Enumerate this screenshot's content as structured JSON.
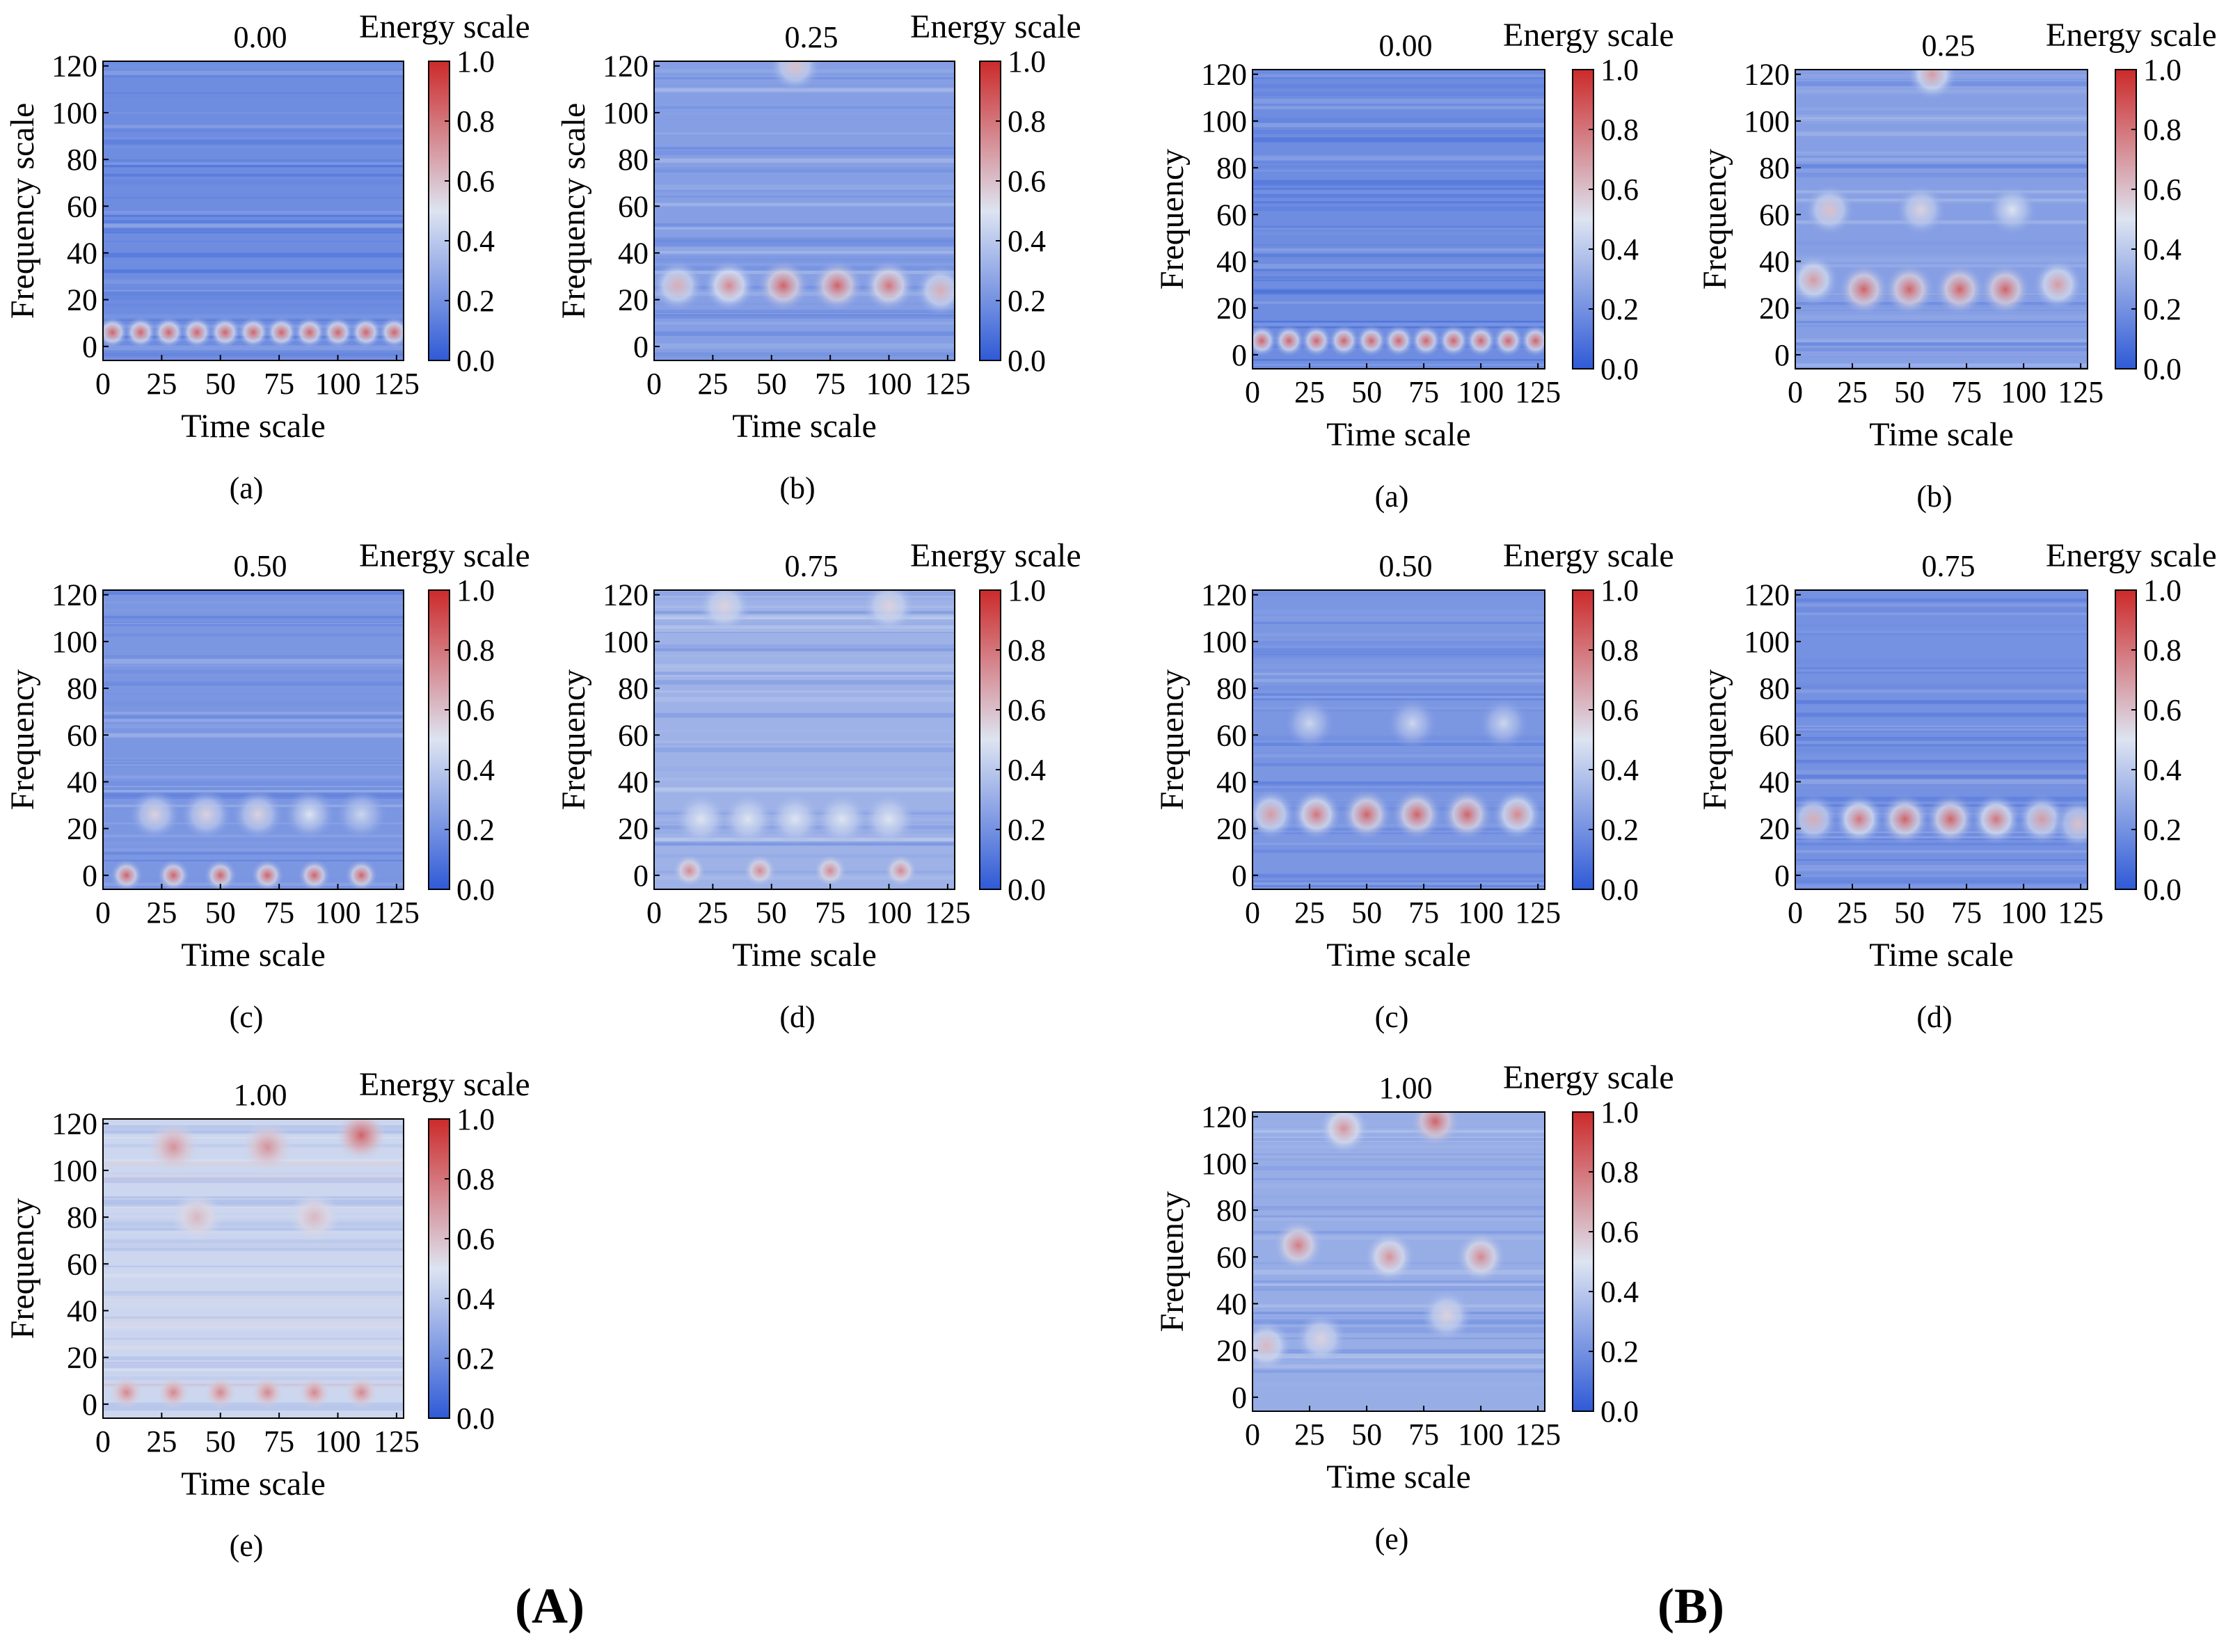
{
  "figure": {
    "group_labels": [
      "(A)",
      "(B)"
    ],
    "colormap": {
      "low": "#2f5ad6",
      "mid": "#dde4f1",
      "high": "#cc2a2a"
    }
  },
  "chart_data": [
    {
      "group": "A",
      "panel": "(a)",
      "type": "heatmap",
      "title": "0.00",
      "xlabel": "Time scale",
      "ylabel": "Frequency scale",
      "colorbar_title": "Energy scale",
      "x_ticks": [
        0,
        25,
        50,
        75,
        100,
        125
      ],
      "y_ticks": [
        0,
        20,
        40,
        60,
        80,
        100,
        120
      ],
      "colorbar_ticks": [
        "0.0",
        "0.2",
        "0.4",
        "0.6",
        "0.8",
        "1.0"
      ],
      "xlim": [
        0,
        128
      ],
      "ylim": [
        -6,
        122
      ],
      "clim": [
        0,
        1
      ],
      "background_level": 0.18,
      "blobs": [
        {
          "x": 4,
          "y": 6,
          "v": 0.85
        },
        {
          "x": 16,
          "y": 6,
          "v": 0.85
        },
        {
          "x": 28,
          "y": 6,
          "v": 0.85
        },
        {
          "x": 40,
          "y": 6,
          "v": 0.85
        },
        {
          "x": 52,
          "y": 6,
          "v": 0.85
        },
        {
          "x": 64,
          "y": 6,
          "v": 0.85
        },
        {
          "x": 76,
          "y": 6,
          "v": 0.85
        },
        {
          "x": 88,
          "y": 6,
          "v": 0.85
        },
        {
          "x": 100,
          "y": 6,
          "v": 0.85
        },
        {
          "x": 112,
          "y": 6,
          "v": 0.85
        },
        {
          "x": 124,
          "y": 6,
          "v": 0.85
        }
      ]
    },
    {
      "group": "A",
      "panel": "(b)",
      "type": "heatmap",
      "title": "0.25",
      "xlabel": "Time scale",
      "ylabel": "Frequency scale",
      "colorbar_title": "Energy scale",
      "x_ticks": [
        0,
        25,
        50,
        75,
        100,
        125
      ],
      "y_ticks": [
        0,
        20,
        40,
        60,
        80,
        100,
        120
      ],
      "colorbar_ticks": [
        "0.0",
        "0.2",
        "0.4",
        "0.6",
        "0.8",
        "1.0"
      ],
      "xlim": [
        0,
        128
      ],
      "ylim": [
        -6,
        122
      ],
      "clim": [
        0,
        1
      ],
      "background_level": 0.25,
      "blobs": [
        {
          "x": 10,
          "y": 26,
          "v": 0.65
        },
        {
          "x": 32,
          "y": 26,
          "v": 0.75
        },
        {
          "x": 55,
          "y": 26,
          "v": 0.85
        },
        {
          "x": 78,
          "y": 26,
          "v": 0.85
        },
        {
          "x": 100,
          "y": 26,
          "v": 0.8
        },
        {
          "x": 122,
          "y": 24,
          "v": 0.65
        },
        {
          "x": 60,
          "y": 120,
          "v": 0.6
        }
      ]
    },
    {
      "group": "A",
      "panel": "(c)",
      "type": "heatmap",
      "title": "0.50",
      "xlabel": "Time scale",
      "ylabel": "Frequency",
      "colorbar_title": "Energy scale",
      "x_ticks": [
        0,
        25,
        50,
        75,
        100,
        125
      ],
      "y_ticks": [
        0,
        20,
        40,
        60,
        80,
        100,
        120
      ],
      "colorbar_ticks": [
        "0.0",
        "0.2",
        "0.4",
        "0.6",
        "0.8",
        "1.0"
      ],
      "xlim": [
        0,
        128
      ],
      "ylim": [
        -6,
        122
      ],
      "clim": [
        0,
        1
      ],
      "background_level": 0.22,
      "blobs": [
        {
          "x": 22,
          "y": 26,
          "v": 0.55
        },
        {
          "x": 44,
          "y": 26,
          "v": 0.55
        },
        {
          "x": 66,
          "y": 26,
          "v": 0.55
        },
        {
          "x": 88,
          "y": 26,
          "v": 0.5
        },
        {
          "x": 110,
          "y": 26,
          "v": 0.45
        },
        {
          "x": 10,
          "y": 0,
          "v": 0.85
        },
        {
          "x": 30,
          "y": 0,
          "v": 0.85
        },
        {
          "x": 50,
          "y": 0,
          "v": 0.85
        },
        {
          "x": 70,
          "y": 0,
          "v": 0.85
        },
        {
          "x": 90,
          "y": 0,
          "v": 0.85
        },
        {
          "x": 110,
          "y": 0,
          "v": 0.85
        }
      ]
    },
    {
      "group": "A",
      "panel": "(d)",
      "type": "heatmap",
      "title": "0.75",
      "xlabel": "Time scale",
      "ylabel": "Frequency",
      "colorbar_title": "Energy scale",
      "x_ticks": [
        0,
        25,
        50,
        75,
        100,
        125
      ],
      "y_ticks": [
        0,
        20,
        40,
        60,
        80,
        100,
        120
      ],
      "colorbar_ticks": [
        "0.0",
        "0.2",
        "0.4",
        "0.6",
        "0.8",
        "1.0"
      ],
      "xlim": [
        0,
        128
      ],
      "ylim": [
        -6,
        122
      ],
      "clim": [
        0,
        1
      ],
      "background_level": 0.32,
      "blobs": [
        {
          "x": 20,
          "y": 24,
          "v": 0.5
        },
        {
          "x": 40,
          "y": 24,
          "v": 0.5
        },
        {
          "x": 60,
          "y": 24,
          "v": 0.5
        },
        {
          "x": 80,
          "y": 24,
          "v": 0.5
        },
        {
          "x": 100,
          "y": 24,
          "v": 0.5
        },
        {
          "x": 15,
          "y": 2,
          "v": 0.75
        },
        {
          "x": 45,
          "y": 2,
          "v": 0.75
        },
        {
          "x": 75,
          "y": 2,
          "v": 0.75
        },
        {
          "x": 105,
          "y": 2,
          "v": 0.75
        },
        {
          "x": 30,
          "y": 115,
          "v": 0.55
        },
        {
          "x": 100,
          "y": 115,
          "v": 0.55
        }
      ]
    },
    {
      "group": "A",
      "panel": "(e)",
      "type": "heatmap",
      "title": "1.00",
      "xlabel": "Time scale",
      "ylabel": "Frequency",
      "colorbar_title": "Energy scale",
      "x_ticks": [
        0,
        25,
        50,
        75,
        100,
        125
      ],
      "y_ticks": [
        0,
        20,
        40,
        60,
        80,
        100,
        120
      ],
      "colorbar_ticks": [
        "0.0",
        "0.2",
        "0.4",
        "0.6",
        "0.8",
        "1.0"
      ],
      "xlim": [
        0,
        128
      ],
      "ylim": [
        -6,
        122
      ],
      "clim": [
        0,
        1
      ],
      "background_level": 0.45,
      "blobs": [
        {
          "x": 30,
          "y": 110,
          "v": 0.72
        },
        {
          "x": 70,
          "y": 110,
          "v": 0.72
        },
        {
          "x": 110,
          "y": 115,
          "v": 0.85
        },
        {
          "x": 40,
          "y": 80,
          "v": 0.62
        },
        {
          "x": 90,
          "y": 80,
          "v": 0.62
        },
        {
          "x": 10,
          "y": 5,
          "v": 0.75
        },
        {
          "x": 30,
          "y": 5,
          "v": 0.75
        },
        {
          "x": 50,
          "y": 5,
          "v": 0.75
        },
        {
          "x": 70,
          "y": 5,
          "v": 0.75
        },
        {
          "x": 90,
          "y": 5,
          "v": 0.75
        },
        {
          "x": 110,
          "y": 5,
          "v": 0.75
        }
      ]
    },
    {
      "group": "B",
      "panel": "(a)",
      "type": "heatmap",
      "title": "0.00",
      "xlabel": "Time scale",
      "ylabel": "Frequency",
      "colorbar_title": "Energy scale",
      "x_ticks": [
        0,
        25,
        50,
        75,
        100,
        125
      ],
      "y_ticks": [
        0,
        20,
        40,
        60,
        80,
        100,
        120
      ],
      "colorbar_ticks": [
        "0.0",
        "0.2",
        "0.4",
        "0.6",
        "0.8",
        "1.0"
      ],
      "xlim": [
        0,
        128
      ],
      "ylim": [
        -6,
        122
      ],
      "clim": [
        0,
        1
      ],
      "background_level": 0.18,
      "blobs": [
        {
          "x": 4,
          "y": 6,
          "v": 0.85
        },
        {
          "x": 16,
          "y": 6,
          "v": 0.85
        },
        {
          "x": 28,
          "y": 6,
          "v": 0.85
        },
        {
          "x": 40,
          "y": 6,
          "v": 0.85
        },
        {
          "x": 52,
          "y": 6,
          "v": 0.85
        },
        {
          "x": 64,
          "y": 6,
          "v": 0.85
        },
        {
          "x": 76,
          "y": 6,
          "v": 0.85
        },
        {
          "x": 88,
          "y": 6,
          "v": 0.85
        },
        {
          "x": 100,
          "y": 6,
          "v": 0.85
        },
        {
          "x": 112,
          "y": 6,
          "v": 0.85
        },
        {
          "x": 124,
          "y": 6,
          "v": 0.85
        }
      ]
    },
    {
      "group": "B",
      "panel": "(b)",
      "type": "heatmap",
      "title": "0.25",
      "xlabel": "Time scale",
      "ylabel": "Frequency",
      "colorbar_title": "Energy scale",
      "x_ticks": [
        0,
        25,
        50,
        75,
        100,
        125
      ],
      "y_ticks": [
        0,
        20,
        40,
        60,
        80,
        100,
        120
      ],
      "colorbar_ticks": [
        "0.0",
        "0.2",
        "0.4",
        "0.6",
        "0.8",
        "1.0"
      ],
      "xlim": [
        0,
        128
      ],
      "ylim": [
        -6,
        122
      ],
      "clim": [
        0,
        1
      ],
      "background_level": 0.25,
      "blobs": [
        {
          "x": 8,
          "y": 32,
          "v": 0.7
        },
        {
          "x": 30,
          "y": 28,
          "v": 0.85
        },
        {
          "x": 50,
          "y": 28,
          "v": 0.85
        },
        {
          "x": 72,
          "y": 28,
          "v": 0.85
        },
        {
          "x": 92,
          "y": 28,
          "v": 0.85
        },
        {
          "x": 115,
          "y": 30,
          "v": 0.7
        },
        {
          "x": 15,
          "y": 62,
          "v": 0.6
        },
        {
          "x": 55,
          "y": 62,
          "v": 0.55
        },
        {
          "x": 95,
          "y": 62,
          "v": 0.5
        },
        {
          "x": 60,
          "y": 120,
          "v": 0.7
        }
      ]
    },
    {
      "group": "B",
      "panel": "(c)",
      "type": "heatmap",
      "title": "0.50",
      "xlabel": "Time scale",
      "ylabel": "Frequency",
      "colorbar_title": "Energy scale",
      "x_ticks": [
        0,
        25,
        50,
        75,
        100,
        125
      ],
      "y_ticks": [
        0,
        20,
        40,
        60,
        80,
        100,
        120
      ],
      "colorbar_ticks": [
        "0.0",
        "0.2",
        "0.4",
        "0.6",
        "0.8",
        "1.0"
      ],
      "xlim": [
        0,
        128
      ],
      "ylim": [
        -6,
        122
      ],
      "clim": [
        0,
        1
      ],
      "background_level": 0.22,
      "blobs": [
        {
          "x": 8,
          "y": 26,
          "v": 0.7
        },
        {
          "x": 28,
          "y": 26,
          "v": 0.8
        },
        {
          "x": 50,
          "y": 26,
          "v": 0.85
        },
        {
          "x": 72,
          "y": 26,
          "v": 0.85
        },
        {
          "x": 94,
          "y": 26,
          "v": 0.85
        },
        {
          "x": 116,
          "y": 26,
          "v": 0.75
        },
        {
          "x": 25,
          "y": 65,
          "v": 0.45
        },
        {
          "x": 70,
          "y": 65,
          "v": 0.45
        },
        {
          "x": 110,
          "y": 65,
          "v": 0.45
        }
      ]
    },
    {
      "group": "B",
      "panel": "(d)",
      "type": "heatmap",
      "title": "0.75",
      "xlabel": "Time scale",
      "ylabel": "Frequency",
      "colorbar_title": "Energy scale",
      "x_ticks": [
        0,
        25,
        50,
        75,
        100,
        125
      ],
      "y_ticks": [
        0,
        20,
        40,
        60,
        80,
        100,
        120
      ],
      "colorbar_ticks": [
        "0.0",
        "0.2",
        "0.4",
        "0.6",
        "0.8",
        "1.0"
      ],
      "xlim": [
        0,
        128
      ],
      "ylim": [
        -6,
        122
      ],
      "clim": [
        0,
        1
      ],
      "background_level": 0.2,
      "blobs": [
        {
          "x": 8,
          "y": 24,
          "v": 0.65
        },
        {
          "x": 28,
          "y": 24,
          "v": 0.8
        },
        {
          "x": 48,
          "y": 24,
          "v": 0.85
        },
        {
          "x": 68,
          "y": 24,
          "v": 0.85
        },
        {
          "x": 88,
          "y": 24,
          "v": 0.8
        },
        {
          "x": 108,
          "y": 24,
          "v": 0.7
        },
        {
          "x": 124,
          "y": 22,
          "v": 0.6
        }
      ]
    },
    {
      "group": "B",
      "panel": "(e)",
      "type": "heatmap",
      "title": "1.00",
      "xlabel": "Time scale",
      "ylabel": "Frequency",
      "colorbar_title": "Energy scale",
      "x_ticks": [
        0,
        25,
        50,
        75,
        100,
        125
      ],
      "y_ticks": [
        0,
        20,
        40,
        60,
        80,
        100,
        120
      ],
      "colorbar_ticks": [
        "0.0",
        "0.2",
        "0.4",
        "0.6",
        "0.8",
        "1.0"
      ],
      "xlim": [
        0,
        128
      ],
      "ylim": [
        -6,
        122
      ],
      "clim": [
        0,
        1
      ],
      "background_level": 0.3,
      "blobs": [
        {
          "x": 20,
          "y": 65,
          "v": 0.78
        },
        {
          "x": 60,
          "y": 60,
          "v": 0.72
        },
        {
          "x": 100,
          "y": 60,
          "v": 0.75
        },
        {
          "x": 80,
          "y": 118,
          "v": 0.85
        },
        {
          "x": 40,
          "y": 115,
          "v": 0.72
        },
        {
          "x": 6,
          "y": 22,
          "v": 0.62
        },
        {
          "x": 30,
          "y": 25,
          "v": 0.55
        },
        {
          "x": 85,
          "y": 35,
          "v": 0.55
        }
      ]
    }
  ]
}
